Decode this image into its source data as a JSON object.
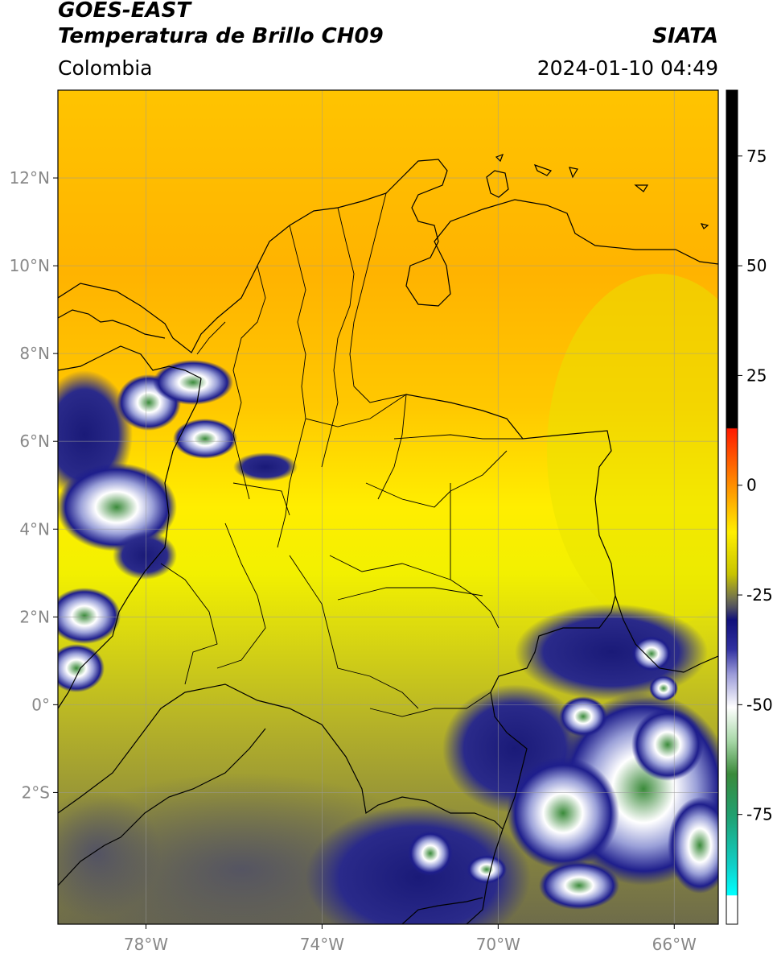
{
  "header": {
    "satellite": "GOES-EAST",
    "product": "Temperatura de Brillo CH09",
    "region": "Colombia",
    "agency": "SIATA",
    "datetime": "2024-01-10 04:49"
  },
  "map": {
    "lat_ticks": [
      {
        "value": 12,
        "label": "12°N"
      },
      {
        "value": 10,
        "label": "10°N"
      },
      {
        "value": 8,
        "label": "8°N"
      },
      {
        "value": 6,
        "label": "6°N"
      },
      {
        "value": 4,
        "label": "4°N"
      },
      {
        "value": 2,
        "label": "2°N"
      },
      {
        "value": 0,
        "label": "0°"
      },
      {
        "value": -2,
        "label": "2°S"
      }
    ],
    "lon_ticks": [
      {
        "value": -78,
        "label": "78°W"
      },
      {
        "value": -74,
        "label": "74°W"
      },
      {
        "value": -70,
        "label": "70°W"
      },
      {
        "value": -66,
        "label": "66°W"
      }
    ],
    "extent": {
      "lon_min": -80,
      "lon_max": -65,
      "lat_min": -5,
      "lat_max": 14
    },
    "grid": true
  },
  "colorbar": {
    "ticks": [
      {
        "value": 75,
        "label": "75"
      },
      {
        "value": 50,
        "label": "50"
      },
      {
        "value": 25,
        "label": "25"
      },
      {
        "value": 0,
        "label": "0"
      },
      {
        "value": -25,
        "label": "-25"
      },
      {
        "value": -50,
        "label": "-50"
      },
      {
        "value": -75,
        "label": "-75"
      }
    ],
    "range": [
      -100,
      90
    ]
  }
}
